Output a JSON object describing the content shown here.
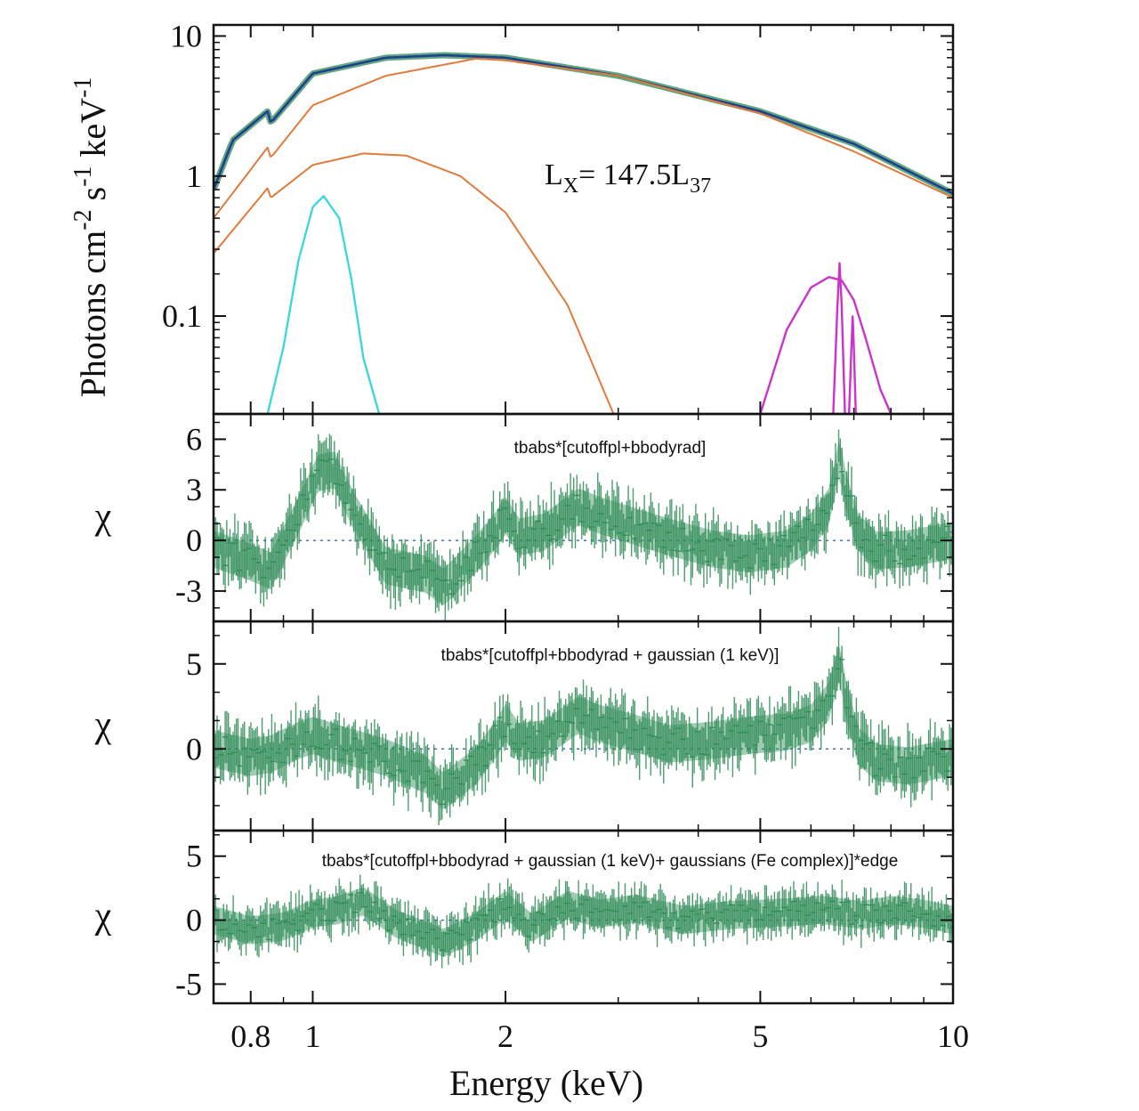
{
  "chart_data": {
    "type": "line",
    "xlabel": "Energy (keV)",
    "x_scale": "log",
    "xlim": [
      0.7,
      10
    ],
    "x_ticks": [
      {
        "value": 0.8,
        "label": "0.8"
      },
      {
        "value": 1,
        "label": "1"
      },
      {
        "value": 2,
        "label": "2"
      },
      {
        "value": 5,
        "label": "5"
      },
      {
        "value": 10,
        "label": "10"
      }
    ],
    "panels": [
      {
        "id": "spectrum",
        "ylabel": "Photons cm",
        "ylabel_parts": [
          "Photons cm",
          "-2",
          " s",
          "-1",
          " keV",
          "-1"
        ],
        "y_scale": "log",
        "ylim": [
          0.02,
          12
        ],
        "y_ticks": [
          {
            "value": 10,
            "label": "10"
          },
          {
            "value": 1,
            "label": "1"
          },
          {
            "value": 0.1,
            "label": "0.1"
          }
        ],
        "annotation": {
          "main": "L",
          "sub1": "X",
          "mid": "= 147.5L",
          "sub2": "37"
        },
        "series": [
          {
            "name": "data",
            "color": "#2e8b57",
            "x": [
              0.7,
              0.75,
              0.85,
              0.86,
              1.0,
              1.3,
              1.6,
              2.0,
              3.0,
              5.0,
              7.0,
              10.0
            ],
            "y": [
              0.8,
              1.8,
              2.9,
              2.4,
              5.4,
              7.0,
              7.3,
              7.0,
              5.2,
              2.9,
              1.7,
              0.75
            ]
          },
          {
            "name": "total model",
            "color": "#1f3f8f",
            "x": [
              0.7,
              0.75,
              0.85,
              0.86,
              1.0,
              1.3,
              1.6,
              2.0,
              3.0,
              5.0,
              7.0,
              10.0
            ],
            "y": [
              0.8,
              1.8,
              2.9,
              2.4,
              5.4,
              7.0,
              7.3,
              7.0,
              5.2,
              2.9,
              1.7,
              0.75
            ]
          },
          {
            "name": "cutoffpl",
            "color": "#e07b3c",
            "x": [
              0.7,
              0.85,
              0.86,
              1.0,
              1.3,
              1.8,
              2.0,
              3.0,
              5.0,
              7.0,
              10.0
            ],
            "y": [
              0.5,
              1.6,
              1.35,
              3.2,
              5.2,
              6.9,
              6.7,
              5.2,
              2.8,
              1.5,
              0.7
            ]
          },
          {
            "name": "bbodyrad",
            "color": "#e07b3c",
            "x": [
              0.7,
              0.85,
              0.86,
              1.0,
              1.2,
              1.4,
              1.7,
              2.0,
              2.5,
              2.95
            ],
            "y": [
              0.28,
              0.82,
              0.7,
              1.2,
              1.45,
              1.4,
              1.0,
              0.55,
              0.12,
              0.02
            ]
          },
          {
            "name": "gaussian (1 keV)",
            "color": "#3fd6e0",
            "x": [
              0.85,
              0.9,
              0.95,
              1.0,
              1.04,
              1.1,
              1.15,
              1.2,
              1.27
            ],
            "y": [
              0.02,
              0.06,
              0.25,
              0.6,
              0.72,
              0.5,
              0.18,
              0.05,
              0.02
            ]
          },
          {
            "name": "gaussian (Fe broad)",
            "color": "#cc33cc",
            "x": [
              5.0,
              5.5,
              6.0,
              6.4,
              6.7,
              7.0,
              7.3,
              7.7,
              8.0
            ],
            "y": [
              0.02,
              0.08,
              0.16,
              0.19,
              0.18,
              0.13,
              0.07,
              0.03,
              0.02
            ]
          },
          {
            "name": "gaussian (Fe 6.7 keV)",
            "color": "#cc33cc",
            "x": [
              6.5,
              6.6,
              6.65,
              6.7,
              6.78
            ],
            "y": [
              0.02,
              0.12,
              0.24,
              0.12,
              0.02
            ]
          },
          {
            "name": "gaussian (Fe 6.97 keV)",
            "color": "#cc33cc",
            "x": [
              6.88,
              6.94,
              6.97,
              7.0,
              7.05
            ],
            "y": [
              0.02,
              0.06,
              0.1,
              0.06,
              0.02
            ]
          }
        ]
      },
      {
        "id": "residuals-1",
        "ylabel": "χ",
        "ylim": [
          -4.8,
          7.5
        ],
        "y_ticks": [
          {
            "value": 6,
            "label": "6"
          },
          {
            "value": 3,
            "label": "3"
          },
          {
            "value": 0,
            "label": "0"
          },
          {
            "value": -3,
            "label": "-3"
          }
        ],
        "model_label": "tbabs*[cutoffpl+bbodyrad]",
        "series": [
          {
            "name": "residuals",
            "color": "#2e8b57",
            "x": [
              0.7,
              0.8,
              0.86,
              0.95,
              1.02,
              1.08,
              1.15,
              1.3,
              1.5,
              1.6,
              1.8,
              1.95,
              2.0,
              2.1,
              2.3,
              2.6,
              2.8,
              3.2,
              3.6,
              4.2,
              4.8,
              5.5,
              6.0,
              6.4,
              6.65,
              6.8,
              7.1,
              7.6,
              8.5,
              10.0
            ],
            "y": [
              -0.5,
              -1.3,
              -1.8,
              1.5,
              4.0,
              4.2,
              2.0,
              -1.5,
              -2.0,
              -2.8,
              -0.8,
              0.8,
              1.5,
              0.2,
              0.5,
              2.0,
              1.5,
              0.8,
              0.2,
              -0.5,
              -0.8,
              -0.5,
              0.5,
              2.0,
              5.0,
              3.0,
              0.5,
              -0.6,
              -0.5,
              0.0
            ]
          }
        ]
      },
      {
        "id": "residuals-2",
        "ylabel": "χ",
        "ylim": [
          -4.8,
          7.5
        ],
        "y_ticks": [
          {
            "value": 5,
            "label": "5"
          },
          {
            "value": 0,
            "label": "0"
          }
        ],
        "model_label": "tbabs*[cutoffpl+bbodyrad + gaussian (1 keV)]",
        "series": [
          {
            "name": "residuals",
            "color": "#2e8b57",
            "x": [
              0.7,
              0.8,
              0.86,
              0.95,
              1.0,
              1.1,
              1.3,
              1.5,
              1.6,
              1.8,
              1.95,
              2.0,
              2.1,
              2.3,
              2.6,
              2.8,
              3.2,
              3.6,
              4.2,
              4.8,
              5.5,
              6.0,
              6.4,
              6.65,
              6.8,
              7.1,
              7.6,
              8.5,
              10.0
            ],
            "y": [
              0.0,
              -0.5,
              -0.3,
              0.5,
              0.8,
              0.3,
              -0.5,
              -1.5,
              -2.5,
              -1.0,
              0.8,
              1.6,
              0.4,
              0.6,
              2.0,
              1.5,
              0.9,
              0.3,
              0.5,
              0.8,
              1.0,
              1.5,
              2.8,
              5.2,
              3.0,
              0.2,
              -0.8,
              -1.0,
              -0.5
            ]
          }
        ]
      },
      {
        "id": "residuals-3",
        "ylabel": "χ",
        "ylim": [
          -6.5,
          7.0
        ],
        "y_ticks": [
          {
            "value": 5,
            "label": "5"
          },
          {
            "value": 0,
            "label": "0"
          },
          {
            "value": -5,
            "label": "-5"
          }
        ],
        "model_label": "tbabs*[cutoffpl+bbodyrad + gaussian (1 keV)+ gaussians (Fe complex)]*edge",
        "series": [
          {
            "name": "residuals",
            "color": "#2e8b57",
            "x": [
              0.7,
              0.8,
              0.9,
              1.0,
              1.1,
              1.2,
              1.35,
              1.5,
              1.6,
              1.8,
              2.0,
              2.2,
              2.5,
              2.8,
              3.2,
              3.8,
              4.5,
              5.5,
              6.2,
              6.7,
              7.2,
              8.0,
              9.0,
              10.0
            ],
            "y": [
              0.0,
              -0.8,
              -0.5,
              0.5,
              0.8,
              1.5,
              -0.3,
              -1.2,
              -1.8,
              -0.5,
              1.2,
              -0.6,
              1.2,
              0.5,
              0.9,
              0.0,
              0.4,
              0.6,
              0.8,
              0.6,
              0.4,
              0.8,
              0.5,
              0.0
            ]
          }
        ]
      }
    ]
  }
}
